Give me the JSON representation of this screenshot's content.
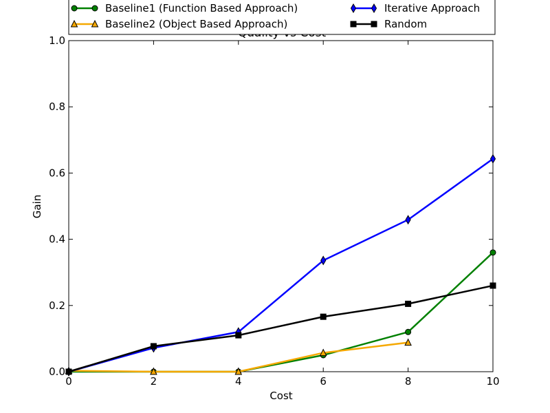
{
  "chart_data": {
    "type": "line",
    "title": "Quality vs Cost",
    "xlabel": "Cost",
    "ylabel": "Gain",
    "xlim": [
      0,
      10
    ],
    "ylim": [
      0,
      1.0
    ],
    "xticks": [
      0,
      2,
      4,
      6,
      8,
      10
    ],
    "yticks": [
      0.0,
      0.2,
      0.4,
      0.6,
      0.8,
      1.0
    ],
    "xtick_labels": [
      "0",
      "2",
      "4",
      "6",
      "8",
      "10"
    ],
    "ytick_labels": [
      "0.0",
      "0.2",
      "0.4",
      "0.6",
      "0.8",
      "1.0"
    ],
    "grid": false,
    "legend_position": "top, above plot, two columns",
    "series": [
      {
        "name": "Baseline1 (Function Based Approach)",
        "color": "#008000",
        "marker": "circle",
        "x": [
          0,
          2,
          4,
          6,
          8,
          10
        ],
        "y": [
          0.0,
          0.0,
          0.0,
          0.05,
          0.12,
          0.36
        ]
      },
      {
        "name": "Baseline2 (Object Based Approach)",
        "color": "#f5a800",
        "marker": "triangle",
        "x": [
          0,
          2,
          4,
          6,
          8
        ],
        "y": [
          0.003,
          0.0,
          0.0,
          0.057,
          0.088
        ]
      },
      {
        "name": "Iterative Approach",
        "color": "#0000ff",
        "marker": "diamond",
        "x": [
          0,
          2,
          4,
          6,
          8,
          10
        ],
        "y": [
          0.0,
          0.072,
          0.12,
          0.336,
          0.459,
          0.643
        ]
      },
      {
        "name": "Random",
        "color": "#000000",
        "marker": "square",
        "x": [
          0,
          2,
          4,
          6,
          8,
          10
        ],
        "y": [
          0.0,
          0.077,
          0.11,
          0.166,
          0.205,
          0.26
        ]
      }
    ]
  }
}
